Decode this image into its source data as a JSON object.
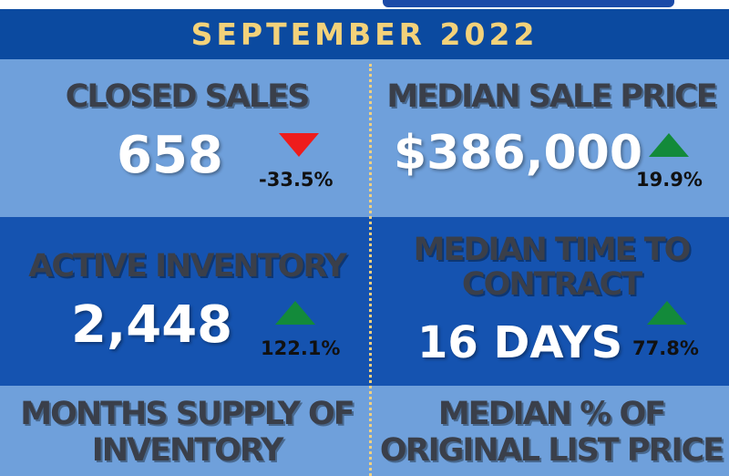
{
  "header": {
    "title": "SEPTEMBER 2022"
  },
  "colors": {
    "header_bg": "#0b4aa0",
    "title_text": "#f3d27a",
    "light_row": "#6fa0db",
    "dark_row": "#1553b0",
    "down": "#ee1c1c",
    "up": "#138a3a"
  },
  "metrics": {
    "closed_sales": {
      "label": "CLOSED SALES",
      "value": "658",
      "change": "-33.5%",
      "direction": "down",
      "icon": "triangle-down-icon"
    },
    "median_sale_price": {
      "label": "MEDIAN SALE PRICE",
      "value": "$386,000",
      "change": "19.9%",
      "direction": "up",
      "icon": "triangle-up-icon"
    },
    "active_inventory": {
      "label": "ACTIVE INVENTORY",
      "value": "2,448",
      "change": "122.1%",
      "direction": "up",
      "icon": "triangle-up-icon"
    },
    "median_time_to_contract": {
      "label_line1": "MEDIAN TIME TO",
      "label_line2": "CONTRACT",
      "value": "16 DAYS",
      "change": "77.8%",
      "direction": "up",
      "icon": "triangle-up-icon"
    },
    "months_supply": {
      "label_line1": "MONTHS SUPPLY OF",
      "label_line2": "INVENTORY"
    },
    "median_pct_list": {
      "label_line1": "MEDIAN % OF",
      "label_line2": "ORIGINAL LIST PRICE"
    }
  }
}
